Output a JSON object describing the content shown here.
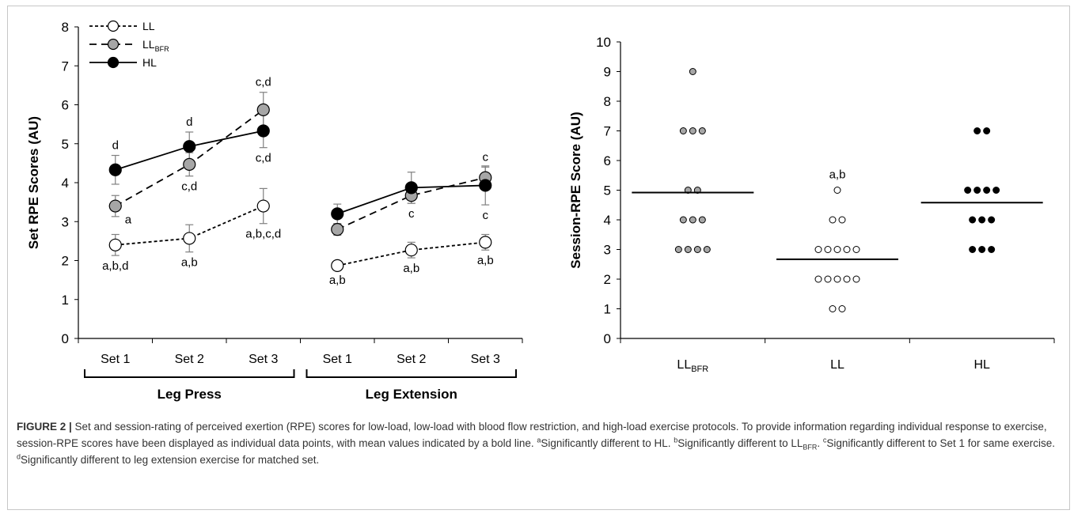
{
  "chart_data": [
    {
      "type": "line",
      "ylabel": "Set RPE Scores (AU)",
      "ylim": [
        0,
        8
      ],
      "yticks": [
        0,
        1,
        2,
        3,
        4,
        5,
        6,
        7,
        8
      ],
      "groups": [
        {
          "name": "Leg Press",
          "categories": [
            "Set 1",
            "Set 2",
            "Set 3"
          ]
        },
        {
          "name": "Leg Extension",
          "categories": [
            "Set 1",
            "Set 2",
            "Set 3"
          ]
        }
      ],
      "legend": {
        "placement": "top-left",
        "entries": [
          {
            "series": "LL",
            "base": "LL",
            "sub": ""
          },
          {
            "series": "LLBFR",
            "base": "LL",
            "sub": "BFR"
          },
          {
            "series": "HL",
            "base": "HL",
            "sub": ""
          }
        ]
      },
      "series": [
        {
          "name": "LL",
          "style": "dotted",
          "marker_fill": "#ffffff",
          "segments": [
            [
              2.4,
              2.57,
              3.4
            ],
            [
              1.87,
              2.27,
              2.47
            ]
          ],
          "errors": [
            [
              0.27,
              0.35,
              0.45
            ],
            [
              0.1,
              0.2,
              0.2
            ]
          ],
          "labels": [
            [
              "a,b,d",
              "a,b",
              "a,b,c,d"
            ],
            [
              "a,b",
              "a,b",
              "a,b"
            ]
          ]
        },
        {
          "name": "LLBFR",
          "style": "dashed",
          "marker_fill": "#a6a6a6",
          "segments": [
            [
              3.4,
              4.47,
              5.87
            ],
            [
              2.8,
              3.67,
              4.13
            ]
          ],
          "errors": [
            [
              0.27,
              0.3,
              0.45
            ],
            [
              0.15,
              0.2,
              0.27
            ]
          ],
          "labels": [
            [
              "a",
              "c,d",
              "c,d"
            ],
            [
              "",
              "c",
              "c"
            ]
          ]
        },
        {
          "name": "HL",
          "style": "solid",
          "marker_fill": "#000000",
          "segments": [
            [
              4.33,
              4.93,
              5.33
            ],
            [
              3.2,
              3.87,
              3.93
            ]
          ],
          "errors": [
            [
              0.37,
              0.37,
              0.43
            ],
            [
              0.25,
              0.4,
              0.5
            ]
          ],
          "labels": [
            [
              "d",
              "d",
              "c,d"
            ],
            [
              "",
              "",
              "c"
            ]
          ]
        }
      ]
    },
    {
      "type": "scatter",
      "ylabel": "Session-RPE Score (AU)",
      "ylim": [
        0,
        10
      ],
      "yticks": [
        0,
        1,
        2,
        3,
        4,
        5,
        6,
        7,
        8,
        9,
        10
      ],
      "categories": [
        {
          "base": "LL",
          "sub": "BFR"
        },
        {
          "base": "LL",
          "sub": ""
        },
        {
          "base": "HL",
          "sub": ""
        }
      ],
      "groups": [
        {
          "name": "LLBFR",
          "fill": "#a6a6a6",
          "mean": 4.92,
          "annotation": "",
          "points": [
            9,
            7,
            7,
            7,
            5,
            5,
            4,
            4,
            4,
            3,
            3,
            3,
            3
          ]
        },
        {
          "name": "LL",
          "fill": "#ffffff",
          "mean": 2.67,
          "annotation": "a,b",
          "points": [
            5,
            4,
            4,
            3,
            3,
            3,
            3,
            3,
            2,
            2,
            2,
            2,
            2,
            1,
            1
          ]
        },
        {
          "name": "HL",
          "fill": "#000000",
          "mean": 4.58,
          "annotation": "",
          "points": [
            7,
            7,
            5,
            5,
            5,
            5,
            4,
            4,
            4,
            3,
            3,
            3
          ]
        }
      ]
    }
  ],
  "caption": {
    "figure_label": "FIGURE 2 |",
    "text1": " Set and session-rating of perceived exertion (RPE) scores for low-load, low-load with blood flow restriction, and high-load exercise protocols. To provide information regarding individual response to exercise, session-RPE scores have been displayed as individual data points, with mean values indicated by a bold line. ",
    "note_a_mark": "a",
    "note_a": "Significantly different to HL. ",
    "note_b_mark": "b",
    "note_b": "Significantly different to LL",
    "note_b_sub": "BFR",
    "note_b_end": ". ",
    "note_c_mark": "c",
    "note_c": "Significantly different to Set 1 for same exercise. ",
    "note_d_mark": "d",
    "note_d": "Significantly different to leg extension exercise for matched set."
  }
}
